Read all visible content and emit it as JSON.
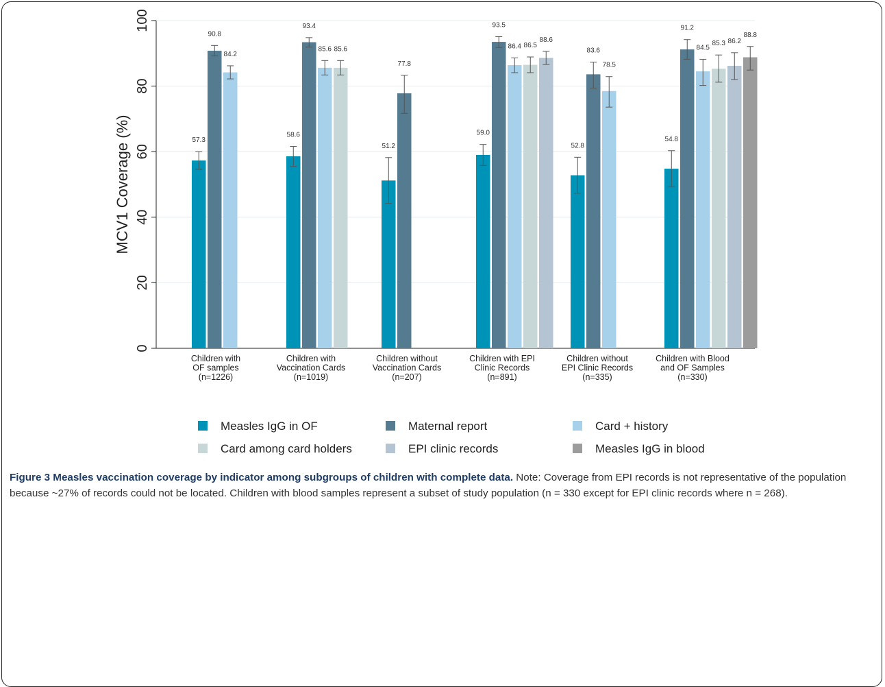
{
  "chart_data": {
    "type": "bar",
    "ylabel": "MCV1 Coverage (%)",
    "ylim": [
      0,
      100
    ],
    "yticks": [
      0,
      20,
      40,
      60,
      80,
      100
    ],
    "grid": true,
    "legend_position": "bottom",
    "categories": [
      {
        "lines": [
          "Children with",
          "OF samples",
          "(n=1226)"
        ]
      },
      {
        "lines": [
          "Children with",
          "Vaccination Cards",
          "(n=1019)"
        ]
      },
      {
        "lines": [
          "Children without",
          "Vaccination Cards",
          "(n=207)"
        ]
      },
      {
        "lines": [
          "Children with EPI",
          "Clinic Records",
          "(n=891)"
        ]
      },
      {
        "lines": [
          "Children without",
          "EPI Clinic Records",
          "(n=335)"
        ]
      },
      {
        "lines": [
          "Children with Blood",
          "and OF Samples",
          "(n=330)"
        ]
      }
    ],
    "series": [
      {
        "name": "Measles IgG in OF",
        "color": "#0093b8",
        "values": [
          57.3,
          58.6,
          51.2,
          59.0,
          52.8,
          54.8
        ],
        "ci": [
          [
            54.6,
            60.0
          ],
          [
            55.5,
            61.6
          ],
          [
            44.2,
            58.2
          ],
          [
            55.8,
            62.2
          ],
          [
            47.3,
            58.3
          ],
          [
            49.4,
            60.3
          ]
        ],
        "labels": [
          "57.3",
          "58.6",
          "51.2",
          "59.0",
          "52.8",
          "54.8"
        ]
      },
      {
        "name": "Maternal report",
        "color": "#557b90",
        "values": [
          90.8,
          93.4,
          77.8,
          93.5,
          83.6,
          91.2
        ],
        "ci": [
          [
            89.2,
            92.4
          ],
          [
            91.9,
            94.8
          ],
          [
            71.7,
            83.3
          ],
          [
            91.8,
            95.1
          ],
          [
            79.4,
            87.3
          ],
          [
            88.2,
            94.2
          ]
        ],
        "labels": [
          "90.8",
          "93.4",
          "77.8",
          "93.5",
          "83.6",
          "91.2"
        ]
      },
      {
        "name": "Card + history",
        "color": "#a7d1ea",
        "values": [
          84.2,
          85.6,
          null,
          86.4,
          78.5,
          84.5
        ],
        "ci": [
          [
            82.2,
            86.2
          ],
          [
            83.4,
            87.8
          ],
          null,
          [
            84.1,
            88.6
          ],
          [
            73.6,
            82.9
          ],
          [
            80.2,
            88.2
          ]
        ],
        "labels": [
          "84.2",
          "85.6",
          "",
          "86.4",
          "78.5",
          "84.5"
        ]
      },
      {
        "name": "Card among card holders",
        "color": "#c7d7d7",
        "values": [
          null,
          85.6,
          null,
          86.5,
          null,
          85.3
        ],
        "ci": [
          null,
          [
            83.4,
            87.8
          ],
          null,
          [
            84.1,
            88.9
          ],
          null,
          [
            81.2,
            89.5
          ]
        ],
        "labels": [
          "",
          "85.6",
          "",
          "86.5",
          "",
          "85.3"
        ]
      },
      {
        "name": "EPI clinic records",
        "color": "#b4c4d2",
        "values": [
          null,
          null,
          null,
          88.6,
          null,
          86.2
        ],
        "ci": [
          null,
          null,
          null,
          [
            86.6,
            90.6
          ],
          null,
          [
            82.0,
            90.2
          ]
        ],
        "labels": [
          "",
          "",
          "",
          "88.6",
          "",
          "86.2"
        ]
      },
      {
        "name": "Measles IgG in blood",
        "color": "#9c9c9c",
        "values": [
          null,
          null,
          null,
          null,
          null,
          88.8
        ],
        "ci": [
          null,
          null,
          null,
          null,
          null,
          [
            84.9,
            92.1
          ]
        ],
        "labels": [
          "",
          "",
          "",
          "",
          "",
          "88.8"
        ]
      }
    ]
  },
  "caption": {
    "title": "Figure 3 Measles vaccination coverage by indicator among subgroups of children with complete data.",
    "note": " Note: Coverage from EPI records is not representative of the population because ~27% of records could not be located. Children with blood samples represent a subset of study population (n = 330 except for EPI clinic records where n = 268)."
  }
}
